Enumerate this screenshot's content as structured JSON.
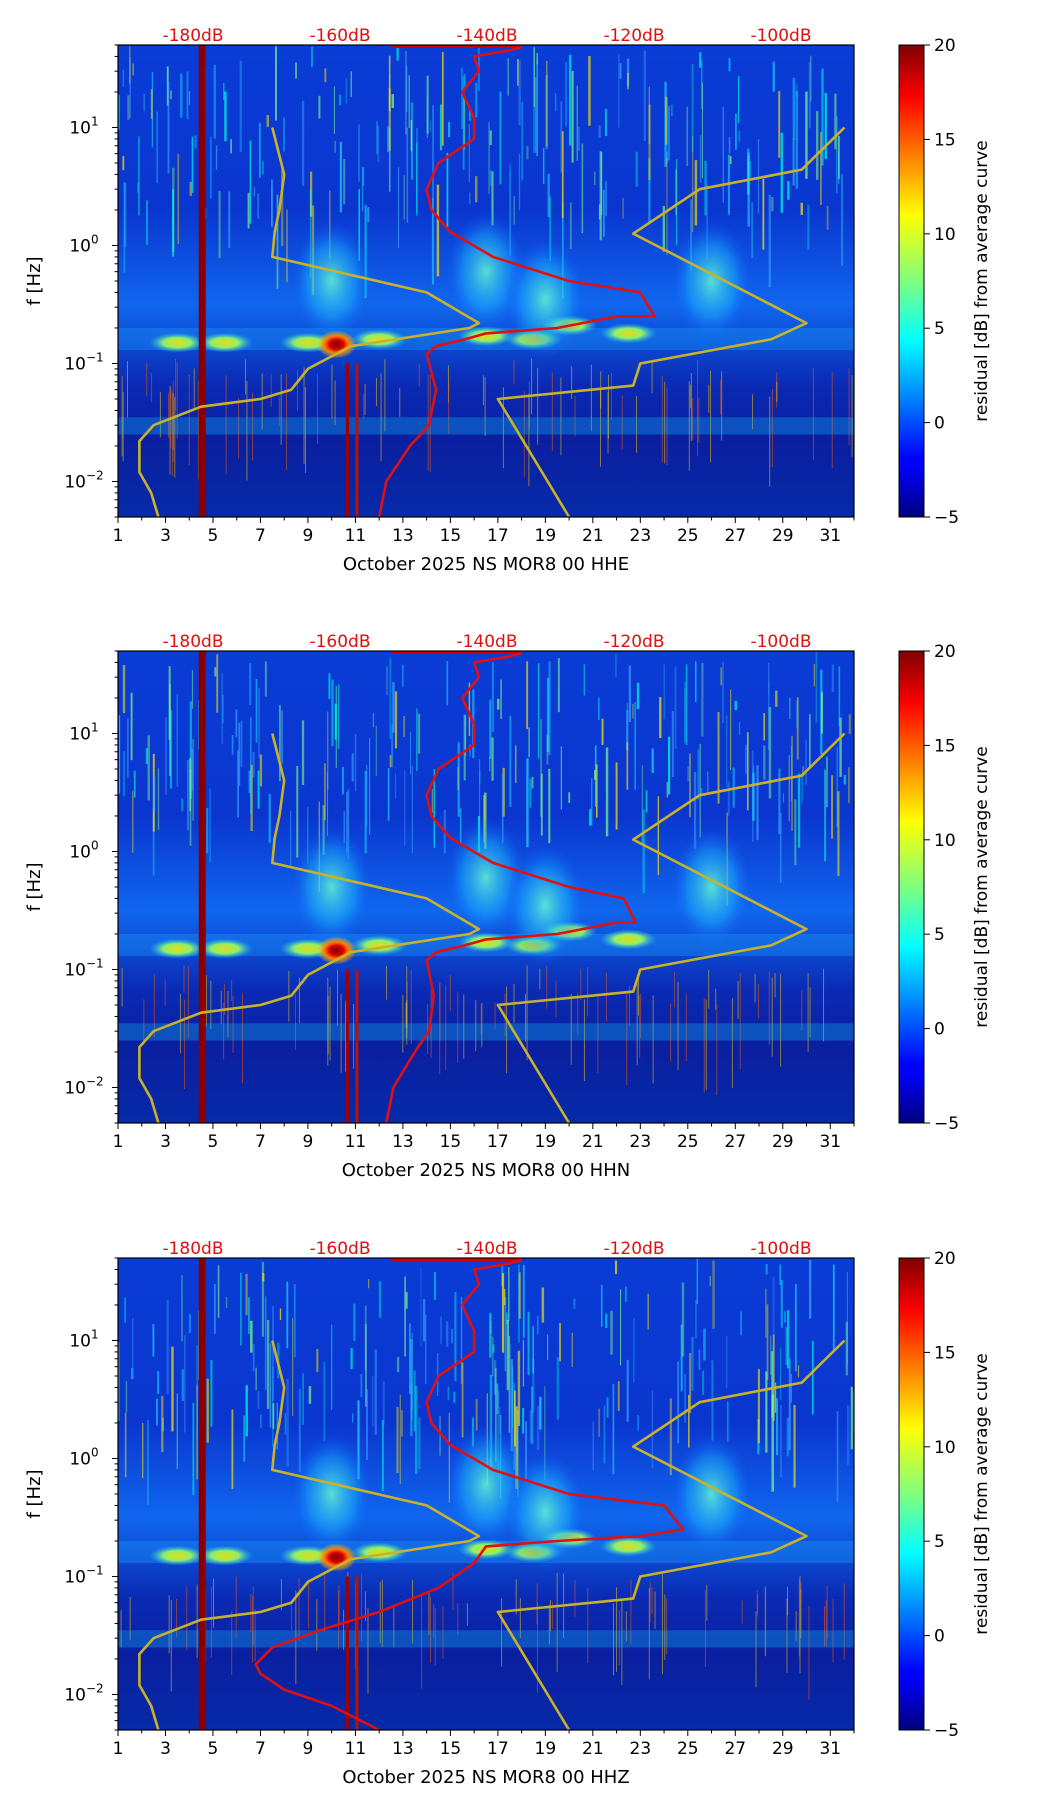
{
  "chart_data": [
    {
      "type": "heatmap",
      "xlabel": "October 2025 NS MOR8 00 HHE",
      "ylabel": "f [Hz]",
      "x_ticks": [
        "1",
        "3",
        "5",
        "7",
        "9",
        "11",
        "13",
        "15",
        "17",
        "19",
        "21",
        "23",
        "25",
        "27",
        "29",
        "31"
      ],
      "y_ticks": [
        "10^-2",
        "10^-1",
        "10^0",
        "10^1"
      ],
      "xlim": [
        1,
        32
      ],
      "ylim": [
        0.005,
        50
      ],
      "y_scale": "log",
      "top_db_ticks": [
        "-180dB",
        "-160dB",
        "-140dB",
        "-120dB",
        "-100dB"
      ],
      "colorbar_label": "residual [dB] from average curve",
      "colorbar_ticks": [
        "20",
        "15",
        "10",
        "5",
        "0",
        "−5"
      ],
      "colorbar_range": [
        -5,
        20
      ],
      "series": [
        {
          "color": "#e01010",
          "x": [
            12.0,
            12.3,
            13.3,
            14.1,
            14.4,
            14.0,
            14.4,
            15.6,
            16.5,
            19.5,
            22.0,
            23.6,
            23.0,
            20.0,
            16.8,
            15.0,
            14.2,
            14.0,
            14.5,
            16.0,
            16.0,
            15.5,
            16.2,
            16.0,
            17.5,
            18.0
          ],
          "y": [
            0.005,
            0.01,
            0.02,
            0.03,
            0.06,
            0.12,
            0.14,
            0.16,
            0.18,
            0.2,
            0.25,
            0.25,
            0.4,
            0.5,
            0.8,
            1.3,
            2.0,
            3.0,
            5.0,
            8.0,
            12.0,
            20.0,
            30.0,
            40.0,
            45.0,
            48.0
          ]
        },
        {
          "color": "#c8b22a",
          "x": [
            2.7,
            2.4,
            1.9,
            1.9,
            2.5,
            4.5,
            7.0,
            8.3,
            9.0,
            10.8,
            15.8,
            16.2,
            14.0,
            7.5,
            7.6,
            7.8,
            8.0,
            7.5
          ],
          "y": [
            0.005,
            0.008,
            0.012,
            0.022,
            0.03,
            0.043,
            0.05,
            0.06,
            0.09,
            0.14,
            0.2,
            0.22,
            0.4,
            0.8,
            1.3,
            2.0,
            4.0,
            10.0
          ]
        },
        {
          "color": "#c8b22a",
          "x": [
            20.0,
            17.0,
            22.7,
            23.0,
            28.5,
            30.0,
            22.7,
            25.5,
            29.8,
            31.6
          ],
          "y": [
            0.005,
            0.05,
            0.065,
            0.1,
            0.16,
            0.22,
            1.26,
            3.0,
            4.4,
            10.0
          ]
        }
      ]
    },
    {
      "type": "heatmap",
      "xlabel": "October 2025 NS MOR8 00 HHN",
      "ylabel": "f [Hz]",
      "x_ticks": [
        "1",
        "3",
        "5",
        "7",
        "9",
        "11",
        "13",
        "15",
        "17",
        "19",
        "21",
        "23",
        "25",
        "27",
        "29",
        "31"
      ],
      "y_ticks": [
        "10^-2",
        "10^-1",
        "10^0",
        "10^1"
      ],
      "xlim": [
        1,
        32
      ],
      "ylim": [
        0.005,
        50
      ],
      "y_scale": "log",
      "top_db_ticks": [
        "-180dB",
        "-160dB",
        "-140dB",
        "-120dB",
        "-100dB"
      ],
      "colorbar_label": "residual [dB] from average curve",
      "colorbar_ticks": [
        "20",
        "15",
        "10",
        "5",
        "0",
        "−5"
      ],
      "colorbar_range": [
        -5,
        20
      ],
      "series": [
        {
          "color": "#e01010",
          "x": [
            12.3,
            12.6,
            13.5,
            14.1,
            14.3,
            14.0,
            14.4,
            15.6,
            16.5,
            19.5,
            22.0,
            22.8,
            22.3,
            20.0,
            16.8,
            15.0,
            14.2,
            14.0,
            14.5,
            16.0,
            16.0,
            15.5,
            16.2,
            16.0,
            17.5,
            18.0
          ],
          "y": [
            0.005,
            0.01,
            0.02,
            0.03,
            0.06,
            0.12,
            0.14,
            0.16,
            0.18,
            0.2,
            0.25,
            0.25,
            0.4,
            0.5,
            0.8,
            1.3,
            2.0,
            3.0,
            5.0,
            8.0,
            12.0,
            20.0,
            30.0,
            40.0,
            45.0,
            48.0
          ]
        },
        {
          "color": "#c8b22a",
          "x": [
            2.7,
            2.4,
            1.9,
            1.9,
            2.5,
            4.5,
            7.0,
            8.3,
            9.0,
            10.8,
            15.8,
            16.2,
            14.0,
            7.5,
            7.6,
            7.8,
            8.0,
            7.5
          ],
          "y": [
            0.005,
            0.008,
            0.012,
            0.022,
            0.03,
            0.043,
            0.05,
            0.06,
            0.09,
            0.14,
            0.2,
            0.22,
            0.4,
            0.8,
            1.3,
            2.0,
            4.0,
            10.0
          ]
        },
        {
          "color": "#c8b22a",
          "x": [
            20.0,
            17.0,
            22.7,
            23.0,
            28.5,
            30.0,
            22.7,
            25.5,
            29.8,
            31.6
          ],
          "y": [
            0.005,
            0.05,
            0.065,
            0.1,
            0.16,
            0.22,
            1.26,
            3.0,
            4.4,
            10.0
          ]
        }
      ]
    },
    {
      "type": "heatmap",
      "xlabel": "October 2025 NS MOR8 00 HHZ",
      "ylabel": "f [Hz]",
      "x_ticks": [
        "1",
        "3",
        "5",
        "7",
        "9",
        "11",
        "13",
        "15",
        "17",
        "19",
        "21",
        "23",
        "25",
        "27",
        "29",
        "31"
      ],
      "y_ticks": [
        "10^-2",
        "10^-1",
        "10^0",
        "10^1"
      ],
      "xlim": [
        1,
        32
      ],
      "ylim": [
        0.005,
        50
      ],
      "y_scale": "log",
      "top_db_ticks": [
        "-180dB",
        "-160dB",
        "-140dB",
        "-120dB",
        "-100dB"
      ],
      "colorbar_label": "residual [dB] from average curve",
      "colorbar_ticks": [
        "20",
        "15",
        "10",
        "5",
        "0",
        "−5"
      ],
      "colorbar_range": [
        -5,
        20
      ],
      "series": [
        {
          "color": "#e01010",
          "x": [
            12.0,
            10.0,
            8.0,
            7.0,
            6.8,
            7.5,
            9.5,
            12.0,
            14.5,
            16.0,
            16.5,
            19.5,
            23.0,
            24.8,
            24.0,
            20.0,
            16.8,
            15.0,
            14.2,
            14.0,
            14.5,
            16.0,
            16.0,
            15.5,
            16.2,
            16.0,
            17.5,
            18.0
          ],
          "y": [
            0.005,
            0.008,
            0.011,
            0.015,
            0.018,
            0.025,
            0.035,
            0.05,
            0.08,
            0.13,
            0.18,
            0.2,
            0.22,
            0.25,
            0.4,
            0.5,
            0.8,
            1.3,
            2.0,
            3.0,
            5.0,
            8.0,
            12.0,
            20.0,
            30.0,
            40.0,
            45.0,
            48.0
          ]
        },
        {
          "color": "#c8b22a",
          "x": [
            2.7,
            2.4,
            1.9,
            1.9,
            2.5,
            4.5,
            7.0,
            8.3,
            9.0,
            10.8,
            15.8,
            16.2,
            14.0,
            7.5,
            7.6,
            7.8,
            8.0,
            7.5
          ],
          "y": [
            0.005,
            0.008,
            0.012,
            0.022,
            0.03,
            0.043,
            0.05,
            0.06,
            0.09,
            0.14,
            0.2,
            0.22,
            0.4,
            0.8,
            1.3,
            2.0,
            4.0,
            10.0
          ]
        },
        {
          "color": "#c8b22a",
          "x": [
            20.0,
            17.0,
            22.7,
            23.0,
            28.5,
            30.0,
            22.7,
            25.5,
            29.8,
            31.6
          ],
          "y": [
            0.005,
            0.05,
            0.065,
            0.1,
            0.16,
            0.22,
            1.26,
            3.0,
            4.4,
            10.0
          ]
        }
      ]
    }
  ]
}
